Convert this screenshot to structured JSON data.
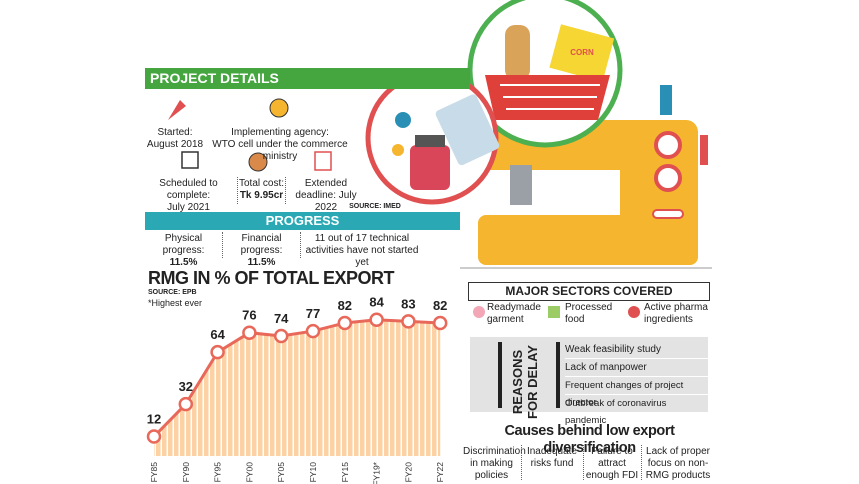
{
  "project_details": {
    "title": "PROJECT DETAILS",
    "items": [
      {
        "label": "Started:",
        "value": "August 2018"
      },
      {
        "label": "Implementing agency:",
        "value": "WTO cell under the commerce ministry"
      },
      {
        "label": "Scheduled to complete:",
        "value": "July 2021"
      },
      {
        "label": "Total cost:",
        "value": "Tk 9.95cr"
      },
      {
        "label": "Extended",
        "value": "deadline: July 2022"
      }
    ],
    "source": "SOURCE: IMED"
  },
  "progress": {
    "title": "PROGRESS",
    "items": [
      {
        "label": "Physical progress:",
        "value": "11.5%"
      },
      {
        "label": "Financial progress:",
        "value": "11.5%"
      },
      {
        "label": "11 out of 17 technical activities have not started yet"
      }
    ]
  },
  "chart_data": {
    "type": "line",
    "title": "RMG IN % OF TOTAL EXPORT",
    "source": "SOURCE: EPB",
    "note": "*Highest ever",
    "categories": [
      "FY85",
      "FY90",
      "FY95",
      "FY00",
      "FY05",
      "FY10",
      "FY15",
      "FY19*",
      "FY20",
      "FY22"
    ],
    "values": [
      12,
      32,
      64,
      76,
      74,
      77,
      82,
      84,
      83,
      82
    ],
    "ylim": [
      0,
      90
    ],
    "color": "#e8685a",
    "fill_color": "#fcd2a4"
  },
  "sectors": {
    "title": "MAJOR SECTORS COVERED",
    "items": [
      "Readymade garment",
      "Processed food",
      "Active pharma ingredients"
    ]
  },
  "reasons": {
    "title": "REASONS FOR DELAY",
    "items": [
      "Weak feasibility study",
      "Lack of manpower",
      "Frequent changes of project director",
      "Outbreak of coronavirus pandemic"
    ]
  },
  "causes": {
    "title": "Causes behind low export diversification",
    "items": [
      "Discrimination in making policies",
      "Inadequate risks fund",
      "Failure to attract enough FDI",
      "Lack of proper focus on non-RMG products"
    ]
  }
}
